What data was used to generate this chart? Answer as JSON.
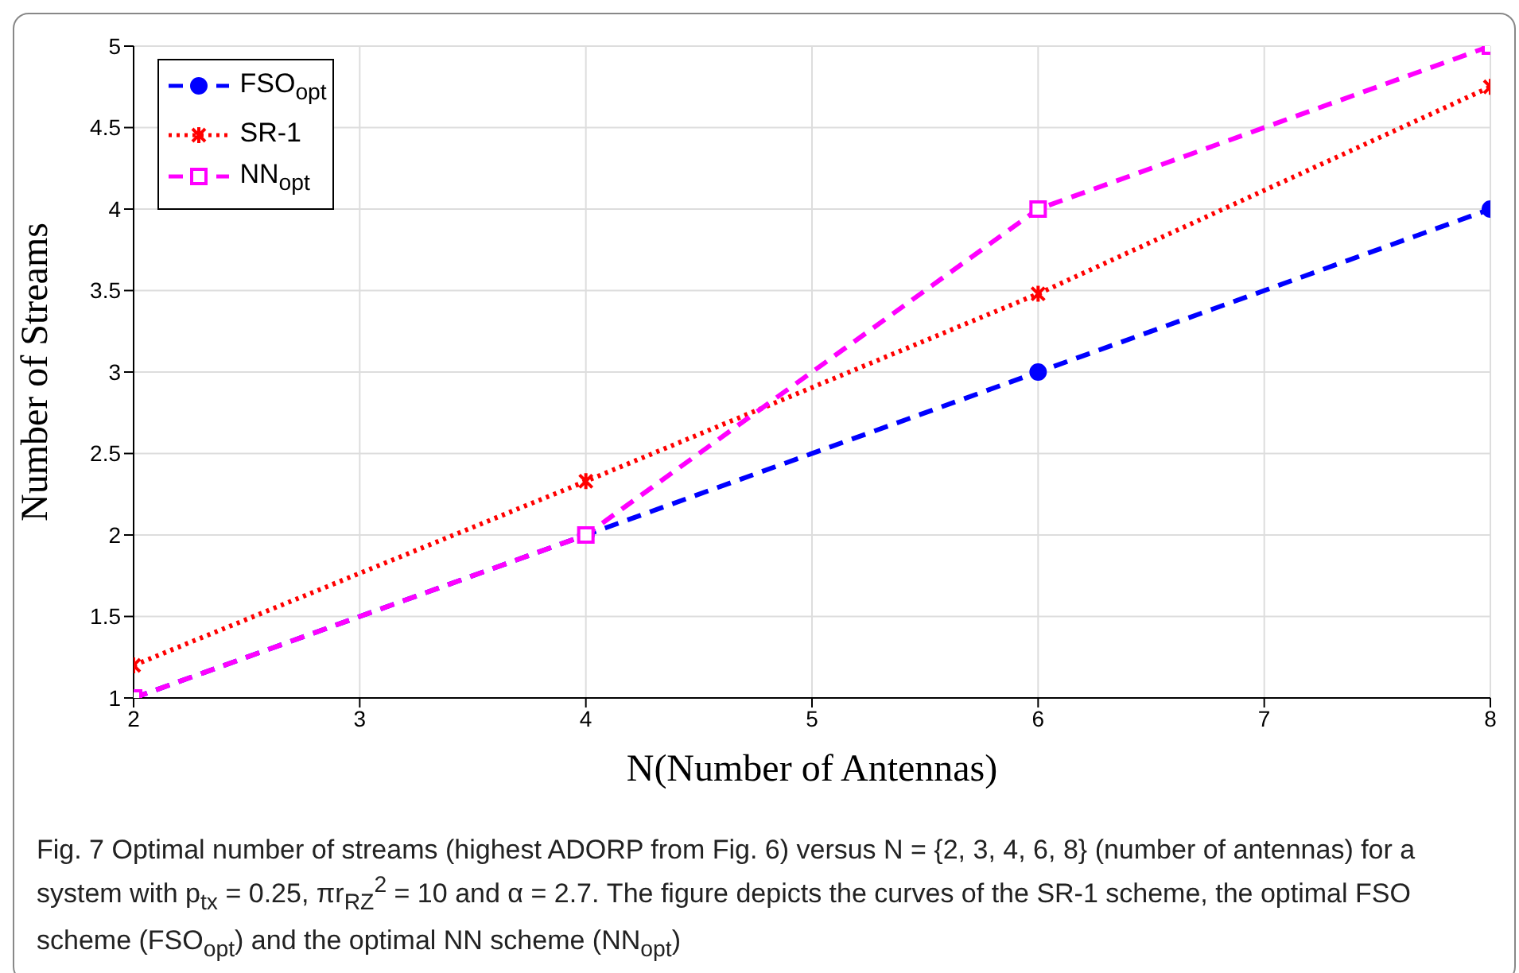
{
  "chart_data": {
    "type": "line",
    "xlabel": "N(Number of Antennas)",
    "ylabel": "Number of Streams",
    "x": [
      2,
      4,
      6,
      8
    ],
    "series": [
      {
        "name": "FSO$_{opt}$",
        "color": "#0000ff",
        "values": [
          1,
          2,
          3,
          4
        ],
        "marker": "circle",
        "line_style": "dashed"
      },
      {
        "name": "SR-1",
        "color": "#ff0000",
        "values": [
          1.2,
          2.33,
          3.48,
          4.75
        ],
        "marker": "cross",
        "line_style": "dotted"
      },
      {
        "name": "NN$_{opt}$",
        "color": "#ff00ff",
        "values": [
          1,
          2,
          4,
          5
        ],
        "marker": "square",
        "line_style": "dashed"
      }
    ],
    "xlim": [
      2,
      8
    ],
    "xticks": [
      2,
      3,
      4,
      5,
      6,
      7,
      8
    ],
    "ylim": [
      1,
      5
    ],
    "yticks": [
      1,
      1.5,
      2,
      2.5,
      3,
      3.5,
      4,
      4.5,
      5
    ],
    "grid": true,
    "legend": "top left",
    "annotations": [
      "Fig. 7  Optimal number of streams (highest ADORP from Fig. 6) versus N = {2, 3, 4, 6, 8} (number of antennas) for a system with p$_{tx}$ = 0.25, πr$_{RZ}$$^{2}$ = 10 and α = 2.7. The figure depicts the curves of the SR-1 scheme, the optimal FSO scheme (FSO$_{opt}$) and the optimal NN scheme (NN$_{opt}$)"
    ]
  }
}
